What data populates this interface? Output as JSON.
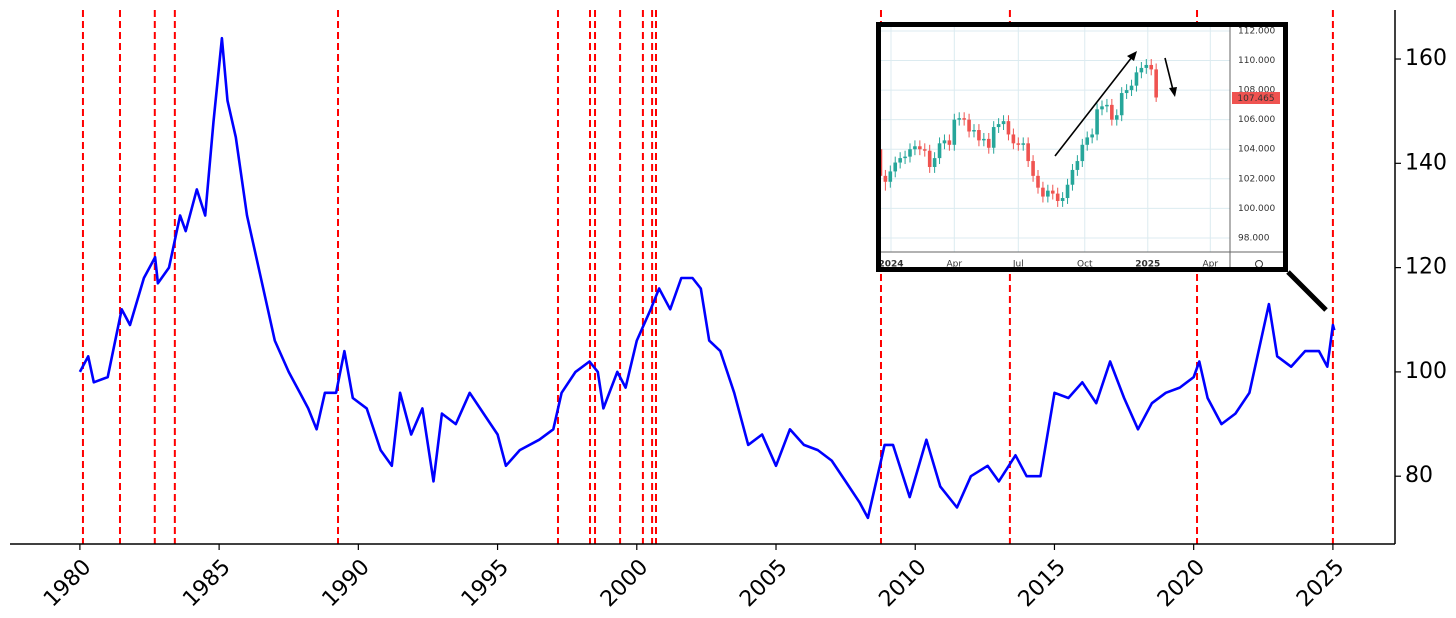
{
  "chart_data": [
    {
      "type": "line",
      "x": [
        1980.0,
        1980.3,
        1980.5,
        1981.0,
        1981.5,
        1981.8,
        1982.3,
        1982.7,
        1982.8,
        1983.2,
        1983.6,
        1983.8,
        1984.2,
        1984.5,
        1984.8,
        1985.1,
        1985.3,
        1985.6,
        1986.0,
        1986.5,
        1987.0,
        1987.5,
        1987.9,
        1988.2,
        1988.5,
        1988.8,
        1989.2,
        1989.5,
        1989.8,
        1990.3,
        1990.8,
        1991.2,
        1991.5,
        1991.9,
        1992.3,
        1992.7,
        1993.0,
        1993.5,
        1994.0,
        1994.5,
        1995.0,
        1995.3,
        1995.8,
        1996.5,
        1997.0,
        1997.3,
        1997.8,
        1998.3,
        1998.6,
        1998.8,
        1999.3,
        1999.6,
        2000.0,
        2000.5,
        2000.8,
        2001.2,
        2001.6,
        2002.0,
        2002.3,
        2002.6,
        2003.0,
        2003.5,
        2004.0,
        2004.5,
        2005.0,
        2005.5,
        2006.0,
        2006.5,
        2007.0,
        2007.5,
        2008.0,
        2008.3,
        2008.9,
        2009.2,
        2009.8,
        2010.4,
        2010.9,
        2011.5,
        2012.0,
        2012.6,
        2013.0,
        2013.6,
        2014.0,
        2014.5,
        2015.0,
        2015.5,
        2016.0,
        2016.5,
        2017.0,
        2017.5,
        2018.0,
        2018.5,
        2019.0,
        2019.5,
        2020.0,
        2020.2,
        2020.5,
        2021.0,
        2021.5,
        2022.0,
        2022.7,
        2023.0,
        2023.5,
        2024.0,
        2024.5,
        2024.8,
        2025.0,
        2025.05
      ],
      "values": [
        100,
        103,
        98,
        99,
        112,
        109,
        118,
        122,
        117,
        120,
        130,
        127,
        135,
        130,
        148,
        164,
        152,
        145,
        130,
        118,
        106,
        100,
        96,
        93,
        89,
        96,
        96,
        104,
        95,
        93,
        85,
        82,
        96,
        88,
        93,
        79,
        92,
        90,
        96,
        92,
        88,
        82,
        85,
        87,
        89,
        96,
        100,
        102,
        100,
        93,
        100,
        97,
        106,
        112,
        116,
        112,
        118,
        118,
        116,
        106,
        104,
        96,
        86,
        88,
        82,
        89,
        86,
        85,
        83,
        79,
        75,
        72,
        86,
        86,
        76,
        87,
        78,
        74,
        80,
        82,
        79,
        84,
        80,
        80,
        96,
        95,
        98,
        94,
        102,
        95,
        89,
        94,
        96,
        97,
        99,
        102,
        95,
        90,
        92,
        96,
        113,
        103,
        101,
        104,
        104,
        101,
        109,
        108
      ],
      "color": "#0000ff",
      "vlines": [
        1980.11,
        1981.44,
        1982.69,
        1983.41,
        1989.27,
        1997.17,
        1998.32,
        1998.5,
        1999.4,
        2000.22,
        2000.55,
        2000.69,
        2008.77,
        2013.4,
        2020.12,
        2025.0
      ],
      "vline_color": "#ff0000",
      "xlim": [
        1977.49,
        2027.23
      ],
      "xticks": [
        1980,
        1985,
        1990,
        1995,
        2000,
        2005,
        2010,
        2015,
        2020,
        2025
      ],
      "ylim": [
        67,
        169.4
      ],
      "yticks": [
        80,
        100,
        120,
        140,
        160
      ]
    },
    {
      "type": "candlestick",
      "open": [
        104.0,
        102.2,
        101.8,
        102.5,
        103.1,
        103.4,
        103.5,
        104.0,
        104.2,
        104.0,
        103.9,
        102.8,
        103.4,
        104.4,
        104.6,
        104.3,
        106.0,
        106.1,
        106.0,
        105.2,
        105.3,
        104.6,
        104.7,
        104.1,
        105.5,
        105.7,
        105.9,
        105.0,
        104.4,
        104.3,
        104.4,
        103.2,
        102.2,
        101.4,
        100.8,
        101.2,
        101.0,
        100.5,
        100.7,
        101.6,
        102.6,
        103.2,
        104.3,
        104.8,
        105.0,
        106.7,
        106.9,
        107.0,
        106.0,
        106.3,
        107.8,
        108.0,
        108.3,
        109.2,
        109.5,
        109.7,
        109.4
      ],
      "high": [
        104.4,
        102.6,
        102.9,
        103.5,
        103.8,
        103.9,
        104.4,
        104.6,
        104.6,
        104.4,
        104.3,
        103.8,
        104.8,
        105.0,
        105.0,
        106.4,
        106.5,
        106.5,
        106.4,
        105.7,
        105.7,
        105.1,
        105.1,
        105.9,
        106.1,
        106.3,
        106.3,
        105.4,
        104.8,
        104.8,
        104.8,
        103.6,
        102.6,
        101.8,
        101.6,
        101.6,
        101.4,
        101.1,
        102.0,
        103.0,
        103.6,
        104.7,
        105.2,
        105.4,
        107.1,
        107.3,
        107.4,
        107.4,
        106.7,
        108.2,
        108.4,
        108.7,
        109.6,
        109.9,
        110.1,
        110.1,
        109.8
      ],
      "low": [
        101.6,
        101.2,
        101.4,
        102.1,
        102.7,
        103.0,
        103.1,
        103.6,
        103.6,
        103.5,
        102.4,
        102.4,
        103.0,
        104.0,
        103.9,
        103.9,
        105.6,
        105.6,
        104.8,
        104.8,
        104.2,
        104.2,
        103.7,
        103.7,
        105.1,
        105.3,
        104.6,
        104.0,
        103.9,
        103.9,
        102.8,
        101.8,
        101.0,
        100.4,
        100.4,
        100.6,
        100.1,
        100.1,
        100.3,
        101.2,
        102.2,
        102.8,
        103.9,
        104.4,
        104.6,
        106.3,
        106.5,
        105.6,
        105.6,
        105.9,
        107.4,
        107.6,
        107.9,
        108.8,
        109.1,
        109.0,
        107.2
      ],
      "close": [
        102.2,
        101.8,
        102.5,
        103.1,
        103.4,
        103.5,
        104.0,
        104.2,
        104.0,
        103.9,
        102.8,
        103.4,
        104.4,
        104.6,
        104.3,
        106.0,
        106.1,
        106.0,
        105.2,
        105.3,
        104.6,
        104.7,
        104.1,
        105.5,
        105.7,
        105.9,
        105.0,
        104.4,
        104.3,
        104.4,
        103.2,
        102.2,
        101.4,
        100.8,
        101.2,
        101.0,
        100.5,
        100.7,
        101.6,
        102.6,
        103.2,
        104.3,
        104.8,
        105.0,
        106.7,
        106.9,
        107.0,
        106.0,
        106.3,
        107.8,
        108.0,
        108.3,
        109.2,
        109.5,
        109.7,
        109.4,
        107.5
      ],
      "up_color": "#26a69a",
      "down_color": "#ef5350",
      "xlim": [
        -0.5,
        71
      ],
      "xticks": [
        {
          "value": 2.14,
          "label": "2024"
        },
        {
          "value": 15,
          "label": "Apr"
        },
        {
          "value": 28,
          "label": "Jul"
        },
        {
          "value": 41.5,
          "label": "Oct"
        },
        {
          "value": 54.3,
          "label": "2025"
        },
        {
          "value": 67,
          "label": "Apr"
        }
      ],
      "ylim": [
        97.05,
        112.47
      ],
      "yticks": [
        {
          "value": 98,
          "label": "98.000"
        },
        {
          "value": 100,
          "label": "100.000"
        },
        {
          "value": 102,
          "label": "102.000"
        },
        {
          "value": 104,
          "label": "104.000"
        },
        {
          "value": 106,
          "label": "106.000"
        },
        {
          "value": 108,
          "label": "108.000"
        },
        {
          "value": 110,
          "label": "110.000"
        },
        {
          "value": 112,
          "label": "112.000"
        }
      ],
      "grid": true,
      "last_price": 107.465,
      "last_price_color": "#ef5350"
    }
  ]
}
